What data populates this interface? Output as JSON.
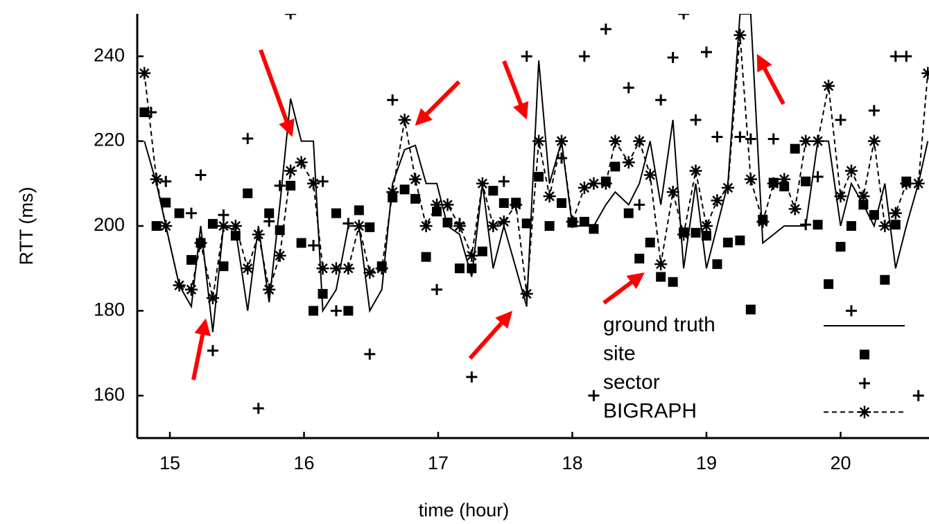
{
  "chart_data": {
    "type": "line",
    "xlabel": "time (hour)",
    "ylabel": "RTT (ms)",
    "xlim": [
      14.757,
      20.659
    ],
    "ylim": [
      150,
      250
    ],
    "xticks": [
      15,
      16,
      17,
      18,
      19,
      20
    ],
    "yticks": [
      160,
      180,
      200,
      220,
      240
    ],
    "legend": "lower right",
    "series": [
      {
        "name": "ground truth",
        "color": "#000000",
        "mode": "line",
        "dash": "solid",
        "x": [
          14.81,
          14.9,
          14.97,
          15.07,
          15.16,
          15.23,
          15.32,
          15.4,
          15.49,
          15.58,
          15.66,
          15.74,
          15.82,
          15.9,
          15.98,
          16.07,
          16.14,
          16.24,
          16.33,
          16.41,
          16.49,
          16.58,
          16.66,
          16.75,
          16.83,
          16.91,
          16.99,
          17.07,
          17.16,
          17.25,
          17.33,
          17.41,
          17.49,
          17.58,
          17.66,
          17.75,
          17.83,
          17.92,
          18.0,
          18.09,
          18.16,
          18.25,
          18.32,
          18.42,
          18.5,
          18.58,
          18.66,
          18.75,
          18.83,
          18.92,
          19.0,
          19.08,
          19.16,
          19.25,
          19.33,
          19.42,
          19.5,
          19.58,
          19.66,
          19.74,
          19.83,
          19.91,
          20.0,
          20.08,
          20.17,
          20.25,
          20.33,
          20.41,
          20.49,
          20.58,
          20.65
        ],
        "values": [
          220,
          210,
          200,
          186,
          181,
          200,
          175,
          200,
          199,
          180,
          200,
          182,
          205,
          230,
          220,
          220,
          180,
          185,
          200,
          200,
          180,
          185,
          210,
          218,
          219,
          210,
          210,
          200,
          198,
          188,
          210,
          190,
          200,
          190,
          181,
          239,
          210,
          220,
          200,
          200,
          200,
          205,
          208,
          205,
          210,
          220,
          205,
          225,
          190,
          210,
          190,
          200,
          210,
          250,
          250,
          196,
          198,
          200,
          200,
          200,
          220,
          220,
          200,
          210,
          205,
          200,
          210,
          190,
          200,
          210,
          220
        ]
      },
      {
        "name": "site",
        "color": "#000000",
        "mode": "markers",
        "marker": "square",
        "x": [
          14.81,
          14.9,
          14.97,
          15.07,
          15.16,
          15.23,
          15.32,
          15.4,
          15.49,
          15.58,
          15.74,
          15.82,
          15.9,
          15.98,
          16.07,
          16.14,
          16.24,
          16.33,
          16.41,
          16.49,
          16.58,
          16.66,
          16.75,
          16.83,
          16.91,
          16.99,
          17.07,
          17.16,
          17.25,
          17.33,
          17.41,
          17.49,
          17.58,
          17.66,
          17.75,
          17.83,
          17.92,
          18.0,
          18.09,
          18.16,
          18.25,
          18.32,
          18.42,
          18.5,
          18.58,
          18.66,
          18.75,
          18.83,
          18.92,
          19.0,
          19.08,
          19.16,
          19.25,
          19.33,
          19.42,
          19.5,
          19.58,
          19.66,
          19.74,
          19.83,
          19.91,
          20.0,
          20.08,
          20.17,
          20.25,
          20.33,
          20.41,
          20.49
        ],
        "values": [
          226.8,
          200,
          205.5,
          203,
          192,
          196,
          200.5,
          190.5,
          197.7,
          207.7,
          203,
          199,
          209.5,
          196,
          180,
          184,
          203,
          180,
          203.7,
          199.7,
          190.5,
          206.7,
          208.6,
          206.4,
          192.7,
          203.4,
          200.8,
          190,
          190,
          194,
          208.3,
          205.4,
          205.5,
          200.6,
          211.6,
          200,
          205.4,
          200.8,
          201,
          199.3,
          210.5,
          214,
          203,
          192.3,
          196.1,
          188,
          186.8,
          198.5,
          198.4,
          197.7,
          191,
          196.1,
          196.6,
          180.3,
          201.5,
          210.2,
          209.3,
          218.2,
          210.5,
          200.3,
          186.3,
          195.1,
          200,
          205,
          202.6,
          187.3,
          200.3,
          210.5
        ]
      },
      {
        "name": "sector",
        "color": "#000000",
        "mode": "markers",
        "marker": "plus",
        "x": [
          14.86,
          14.97,
          15.16,
          15.23,
          15.32,
          15.4,
          15.58,
          15.66,
          15.74,
          15.82,
          15.9,
          16.07,
          16.14,
          16.24,
          16.33,
          16.49,
          16.66,
          16.99,
          17.16,
          17.25,
          17.49,
          17.66,
          17.92,
          18.09,
          18.16,
          18.25,
          18.42,
          18.5,
          18.66,
          18.75,
          18.83,
          18.92,
          19.0,
          19.08,
          19.25,
          19.33,
          19.5,
          19.74,
          19.83,
          20.08,
          20.0,
          20.25,
          20.41,
          20.49,
          20.58
        ],
        "values": [
          226.8,
          210.5,
          203,
          212,
          170.6,
          202.6,
          220.6,
          157,
          201.1,
          209.5,
          250,
          195.4,
          210.5,
          180,
          200.6,
          169.8,
          229.7,
          185,
          200.6,
          164.4,
          210.5,
          240,
          216,
          240,
          160,
          246.4,
          232.6,
          205,
          229.7,
          239.7,
          250,
          225,
          241,
          221,
          221,
          220.5,
          220.5,
          200.3,
          211.6,
          180,
          225,
          227.2,
          240,
          240,
          160
        ]
      },
      {
        "name": "BIGRAPH",
        "color": "#000000",
        "mode": "lines+markers",
        "marker": "asterisk",
        "dash": "dashed",
        "x": [
          14.81,
          14.9,
          14.97,
          15.07,
          15.16,
          15.23,
          15.32,
          15.4,
          15.49,
          15.58,
          15.66,
          15.74,
          15.82,
          15.9,
          15.98,
          16.07,
          16.14,
          16.24,
          16.33,
          16.41,
          16.49,
          16.58,
          16.66,
          16.75,
          16.83,
          16.91,
          16.99,
          17.07,
          17.16,
          17.25,
          17.33,
          17.41,
          17.49,
          17.58,
          17.66,
          17.75,
          17.83,
          17.92,
          18.0,
          18.09,
          18.16,
          18.25,
          18.32,
          18.42,
          18.5,
          18.58,
          18.66,
          18.75,
          18.83,
          18.92,
          19.0,
          19.08,
          19.16,
          19.25,
          19.33,
          19.42,
          19.5,
          19.58,
          19.66,
          19.74,
          19.83,
          19.91,
          20.0,
          20.08,
          20.17,
          20.25,
          20.33,
          20.41,
          20.49,
          20.58,
          20.65
        ],
        "values": [
          236,
          211,
          200,
          186,
          185,
          196,
          183,
          200,
          200,
          190,
          198,
          185,
          193,
          213,
          215,
          210,
          190,
          190,
          190,
          200,
          189,
          190,
          208,
          225,
          211,
          200,
          205,
          205,
          200,
          193,
          210,
          200,
          201,
          205,
          184,
          220,
          207,
          220,
          201,
          209,
          210,
          210,
          220,
          215,
          220,
          212,
          191,
          208,
          198,
          213,
          200,
          206,
          209,
          245,
          211,
          201,
          210,
          211,
          204,
          220,
          220,
          233,
          207,
          213,
          207,
          220,
          200,
          203,
          210,
          210,
          236
        ]
      }
    ]
  }
}
